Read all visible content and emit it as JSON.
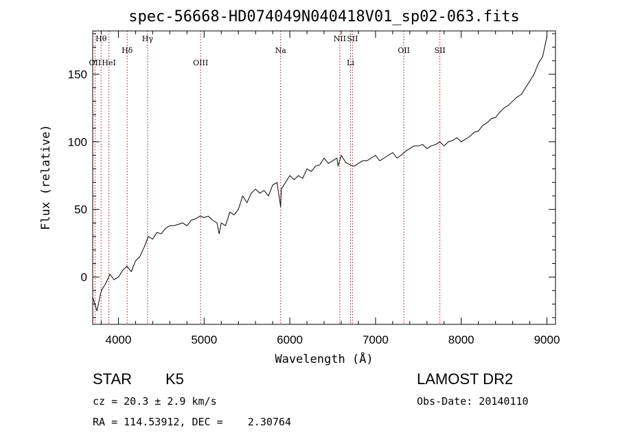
{
  "chart_data": {
    "type": "line",
    "title": "spec-56668-HD074049N040418V01_sp02-063.fits",
    "xlabel": "Wavelength (Å)",
    "ylabel": "Flux (relative)",
    "xlim": [
      3700,
      9100
    ],
    "ylim": [
      -35,
      182
    ],
    "xticks": [
      4000,
      5000,
      6000,
      7000,
      8000,
      9000
    ],
    "yticks": [
      0,
      50,
      100,
      150
    ],
    "grid": false,
    "spectrum": {
      "x": [
        3700,
        3750,
        3800,
        3850,
        3900,
        3950,
        4000,
        4050,
        4100,
        4150,
        4200,
        4250,
        4300,
        4350,
        4400,
        4450,
        4500,
        4550,
        4600,
        4650,
        4700,
        4750,
        4800,
        4850,
        4900,
        4950,
        5000,
        5050,
        5100,
        5150,
        5175,
        5200,
        5250,
        5300,
        5350,
        5400,
        5450,
        5500,
        5550,
        5600,
        5650,
        5700,
        5750,
        5800,
        5850,
        5893,
        5900,
        5950,
        6000,
        6050,
        6100,
        6150,
        6200,
        6250,
        6300,
        6350,
        6400,
        6450,
        6500,
        6550,
        6563,
        6600,
        6650,
        6700,
        6750,
        6800,
        6850,
        6900,
        6950,
        7000,
        7050,
        7100,
        7150,
        7200,
        7250,
        7300,
        7350,
        7400,
        7450,
        7500,
        7550,
        7600,
        7650,
        7700,
        7750,
        7800,
        7850,
        7900,
        7950,
        8000,
        8050,
        8100,
        8150,
        8200,
        8250,
        8300,
        8350,
        8400,
        8450,
        8500,
        8550,
        8600,
        8650,
        8700,
        8750,
        8800,
        8850,
        8900,
        8950,
        8980,
        9000
      ],
      "y": [
        -15,
        -25,
        -10,
        -5,
        2,
        -2,
        0,
        5,
        8,
        4,
        12,
        15,
        22,
        30,
        28,
        33,
        32,
        36,
        38,
        38,
        39,
        40,
        38,
        42,
        43,
        45,
        44,
        45,
        42,
        40,
        32,
        40,
        38,
        48,
        46,
        50,
        60,
        55,
        62,
        65,
        62,
        64,
        60,
        68,
        70,
        52,
        65,
        70,
        75,
        72,
        75,
        73,
        80,
        78,
        82,
        83,
        88,
        84,
        86,
        88,
        82,
        90,
        85,
        83,
        82,
        84,
        86,
        86,
        88,
        90,
        86,
        88,
        90,
        92,
        88,
        90,
        93,
        95,
        97,
        97,
        98,
        95,
        97,
        98,
        100,
        97,
        100,
        101,
        103,
        100,
        102,
        104,
        107,
        108,
        112,
        114,
        117,
        118,
        122,
        125,
        127,
        130,
        133,
        135,
        140,
        145,
        150,
        158,
        163,
        172,
        178
      ]
    },
    "spectral_lines": [
      {
        "label": "Hθ",
        "x": 3798,
        "row": 0
      },
      {
        "label": "OII",
        "x": 3727,
        "row": 2
      },
      {
        "label": "HeI",
        "x": 3889,
        "row": 2
      },
      {
        "label": "Hδ",
        "x": 4102,
        "row": 1
      },
      {
        "label": "Hγ",
        "x": 4340,
        "row": 0
      },
      {
        "label": "OIII",
        "x": 4959,
        "row": 2
      },
      {
        "label": "Na",
        "x": 5893,
        "row": 1
      },
      {
        "label": "NII",
        "x": 6583,
        "row": 0
      },
      {
        "label": "SII",
        "x": 6731,
        "row": 0
      },
      {
        "label": "Li",
        "x": 6708,
        "row": 2
      },
      {
        "label": "OII",
        "x": 7330,
        "row": 1
      },
      {
        "label": "SII",
        "x": 7751,
        "row": 1
      }
    ]
  },
  "info": {
    "class": "STAR",
    "subclass": "K5",
    "survey": "LAMOST DR2",
    "cz": "cz = 20.3 ± 2.9 km/s",
    "obs_date": "Obs-Date: 20140110",
    "radec": "RA = 114.53912, DEC =    2.30764"
  },
  "colors": {
    "axis": "#000000",
    "spectrum": "#000000",
    "line_marker": "#c00000"
  }
}
